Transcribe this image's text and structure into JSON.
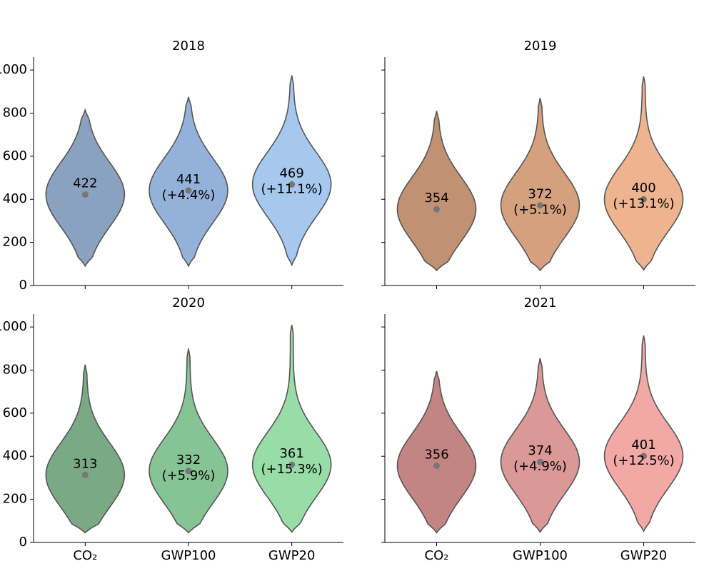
{
  "chart_data": [
    {
      "type": "violin",
      "title": "2018",
      "values": [
        422,
        441,
        469
      ],
      "change_labels": [
        null,
        "(+4.4%)",
        "(+11.1%)"
      ],
      "mins": [
        90,
        90,
        95
      ],
      "maxs": [
        815,
        875,
        975
      ],
      "colors": [
        "#8aa2bf",
        "#94b2d9",
        "#a6c8ee"
      ],
      "ylim": [
        0,
        1060
      ],
      "yticks": [
        0,
        200,
        400,
        600,
        800,
        1000
      ]
    },
    {
      "type": "violin",
      "title": "2019",
      "values": [
        354,
        372,
        400
      ],
      "change_labels": [
        null,
        "(+5.1%)",
        "(+13.1%)"
      ],
      "mins": [
        70,
        70,
        72
      ],
      "maxs": [
        810,
        870,
        970
      ],
      "colors": [
        "#c09273",
        "#d5a07e",
        "#eeb48f"
      ],
      "ylim": [
        0,
        1060
      ],
      "yticks": [
        0,
        200,
        400,
        600,
        800,
        1000
      ]
    },
    {
      "type": "violin",
      "title": "2020",
      "categories": [
        "CO₂",
        "GWP100",
        "GWP20"
      ],
      "values": [
        313,
        332,
        361
      ],
      "change_labels": [
        null,
        "(+5.9%)",
        "(+15.3%)"
      ],
      "mins": [
        45,
        45,
        48
      ],
      "maxs": [
        825,
        900,
        1010
      ],
      "colors": [
        "#79aa85",
        "#87c495",
        "#98dca8"
      ],
      "ylim": [
        0,
        1060
      ],
      "yticks": [
        0,
        200,
        400,
        600,
        800,
        1000
      ]
    },
    {
      "type": "violin",
      "title": "2021",
      "categories": [
        "CO₂",
        "GWP100",
        "GWP20"
      ],
      "values": [
        356,
        374,
        401
      ],
      "change_labels": [
        null,
        "(+4.9%)",
        "(+12.5%)"
      ],
      "mins": [
        45,
        48,
        52
      ],
      "maxs": [
        795,
        855,
        960
      ],
      "colors": [
        "#c28583",
        "#da9896",
        "#f2a8a5"
      ],
      "ylim": [
        0,
        1060
      ],
      "yticks": [
        0,
        200,
        400,
        600,
        800,
        1000
      ]
    }
  ]
}
